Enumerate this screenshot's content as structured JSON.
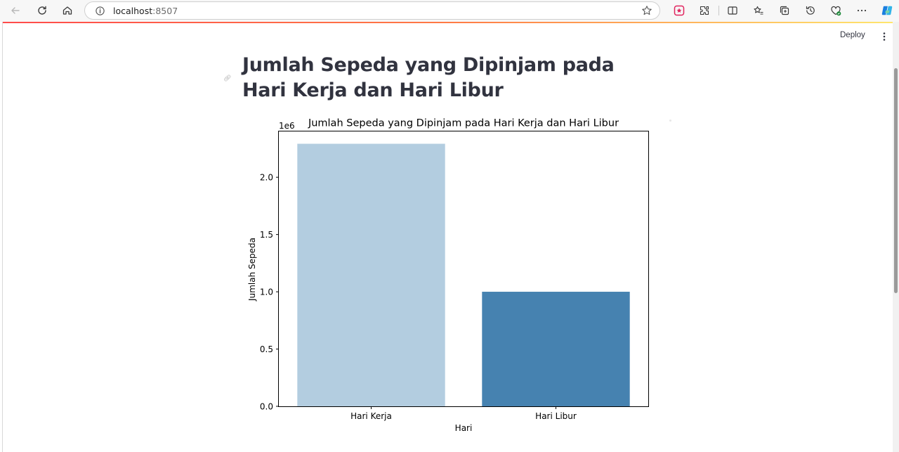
{
  "browser": {
    "url_host": "localhost",
    "url_port": ":8507"
  },
  "app": {
    "deploy_label": "Deploy",
    "title": "Jumlah Sepeda yang Dipinjam pada Hari Kerja dan Hari Libur",
    "decoration_colors": [
      "#ff4b4b",
      "#ffe66d"
    ]
  },
  "chart_data": {
    "type": "bar",
    "title": "Jumlah Sepeda yang Dipinjam pada Hari Kerja dan Hari Libur",
    "xlabel": "Hari",
    "ylabel": "Jumlah Sepeda",
    "offset_label": "1e6",
    "categories": [
      "Hari Kerja",
      "Hari Libur"
    ],
    "values": [
      2292410,
      1000269
    ],
    "colors": [
      "#b3cde0",
      "#4682b0"
    ],
    "ylim": [
      0,
      2400000
    ],
    "yticks": [
      0,
      500000,
      1000000,
      1500000,
      2000000
    ],
    "ytick_labels": [
      "0.0",
      "0.5",
      "1.0",
      "1.5",
      "2.0"
    ],
    "grid": false
  }
}
